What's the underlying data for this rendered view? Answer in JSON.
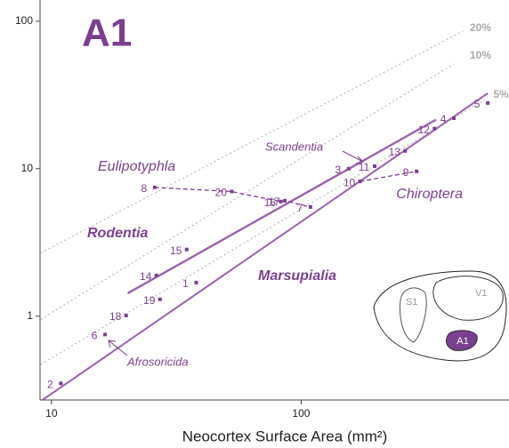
{
  "chart_data": {
    "type": "scatter",
    "panel_label": "A1",
    "x_label": "Neocortex Surface Area (mm²)",
    "log_x": true,
    "log_y": true,
    "xlim": [
      9,
      680
    ],
    "ylim": [
      0.27,
      130
    ],
    "xticks": [
      10,
      100
    ],
    "yticks": [
      1,
      10,
      100
    ],
    "color": "#7b3f8f",
    "series": [
      {
        "name": "Eulipotyphla",
        "line": "dashed",
        "labels": [
          "8",
          "20",
          "16",
          "17",
          "7"
        ],
        "x": [
          25.9,
          52.7,
          82.8,
          86,
          109
        ],
        "values": [
          7.47,
          7.0,
          5.98,
          6.07,
          5.5
        ]
      },
      {
        "name": "Chiroptera",
        "line": "dashed",
        "labels": [
          "10",
          "9"
        ],
        "x": [
          172,
          290
        ],
        "values": [
          8.2,
          9.6
        ]
      },
      {
        "name": null,
        "line": "none",
        "labels": [
          "1",
          "2",
          "3",
          "4",
          "5",
          "6",
          "11",
          "12",
          "13",
          "14",
          "15",
          "18",
          "19"
        ],
        "x": [
          38,
          10.9,
          155,
          409,
          559,
          16.4,
          197,
          342,
          261,
          26.3,
          34.8,
          19.9,
          27.2
        ],
        "values": [
          1.69,
          0.35,
          10,
          22,
          27.9,
          0.75,
          10.4,
          18.7,
          13.2,
          1.89,
          2.83,
          1.01,
          1.3
        ]
      }
    ],
    "fit_lines": [
      {
        "x": [
          9.2,
          559
        ],
        "values": [
          0.27,
          32.5
        ]
      },
      {
        "x": [
          20.2,
          347
        ],
        "values": [
          1.43,
          21.5
        ]
      }
    ],
    "reference_lines": [
      {
        "name": "20%",
        "x": [
          9.06,
          445
        ],
        "values": [
          2.68,
          85.9
        ]
      },
      {
        "name": "10%",
        "x": [
          9.06,
          409
        ],
        "values": [
          0.95,
          51.4
        ]
      },
      {
        "name": "5%",
        "x": [
          9.06,
          559
        ],
        "values": [
          0.47,
          30.3
        ]
      }
    ],
    "annotations": [
      "Rodentia",
      "Marsupialia",
      "Scandentia",
      "Afrosoricida"
    ],
    "inset_labels": [
      "V1",
      "S1",
      "A1"
    ]
  }
}
